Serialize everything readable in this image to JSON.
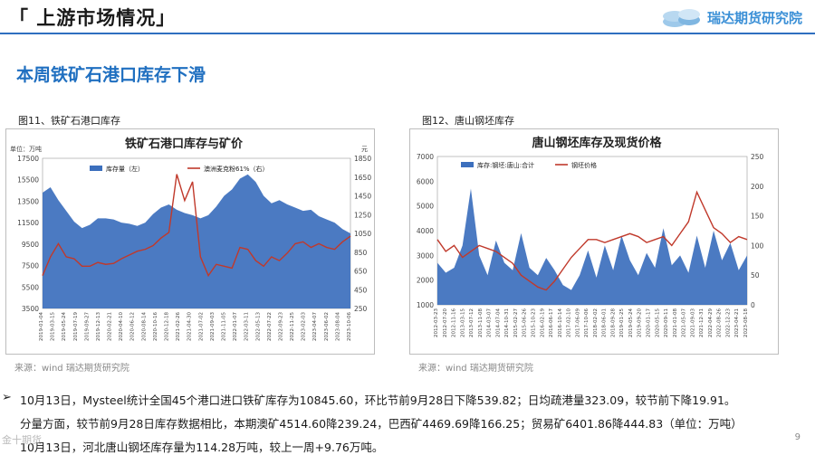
{
  "header": {
    "title": "「 上游市场情况」",
    "logo_text": "瑞达期货研究院"
  },
  "subtitle": "本周铁矿石港口库存下滑",
  "fig11": {
    "label": "图11、铁矿石港口库存",
    "source": "来源：wind    瑞达期货研究院",
    "chart_data": {
      "type": "area",
      "title": "铁矿石港口库存与矿价",
      "left_unit": "单位：万吨",
      "right_unit": "元",
      "legend": [
        "库存量（左）",
        "澳洲麦克粉61%（右）"
      ],
      "colors": {
        "area": "#3c6fbd",
        "line": "#c0392b"
      },
      "y_left_ticks": [
        "17500",
        "15500",
        "13500",
        "11500",
        "9500",
        "7500",
        "5500",
        "3500"
      ],
      "y_right_ticks": [
        "1850",
        "1650",
        "1450",
        "1250",
        "1050",
        "850",
        "650",
        "450",
        "250"
      ],
      "ylim_left": [
        3500,
        17500
      ],
      "ylim_right": [
        250,
        1850
      ],
      "x_ticks": [
        "2019-01-04",
        "2019-03-15",
        "2019-05-24",
        "2019-07-19",
        "2019-09-27",
        "2019-12-13",
        "2020-02-21",
        "2020-04-10",
        "2020-06-12",
        "2020-08-14",
        "2020-10-16",
        "2020-12-18",
        "2021-02-26",
        "2021-04-30",
        "2021-07-02",
        "2021-09-03",
        "2021-11-05",
        "2022-01-07",
        "2022-03-11",
        "2022-05-13",
        "2022-07-22",
        "2022-09-23",
        "2022-11-25",
        "2023-02-03",
        "2023-04-07",
        "2023-06-02",
        "2023-08-04",
        "2023-10-06"
      ],
      "inventory": [
        14300,
        14800,
        13600,
        12600,
        11600,
        11000,
        11300,
        11900,
        11900,
        11800,
        11500,
        11400,
        11200,
        11500,
        12300,
        12900,
        13200,
        12700,
        12400,
        12200,
        11900,
        12200,
        13000,
        14000,
        14600,
        15600,
        16000,
        15300,
        14000,
        13300,
        13600,
        13200,
        12900,
        12600,
        12700,
        12100,
        11800,
        11500,
        10900,
        10500
      ],
      "price": [
        600,
        800,
        940,
        800,
        780,
        700,
        700,
        740,
        720,
        730,
        780,
        820,
        860,
        880,
        920,
        1000,
        1060,
        1680,
        1400,
        1600,
        800,
        600,
        720,
        700,
        680,
        900,
        880,
        760,
        700,
        800,
        760,
        840,
        940,
        960,
        900,
        940,
        900,
        880,
        960,
        1020
      ]
    }
  },
  "fig12": {
    "label": "图12、唐山钢坯库存",
    "source": "来源：wind    瑞达期货研究院",
    "chart_data": {
      "type": "area",
      "title": "唐山钢坯库存及现货价格",
      "legend": [
        "库存:钢坯:唐山:合计",
        "钢坯价格"
      ],
      "colors": {
        "area": "#3c6fbd",
        "line": "#c0392b"
      },
      "y_left_ticks": [
        "7000",
        "6000",
        "5000",
        "4000",
        "3000",
        "2000",
        "1000"
      ],
      "y_right_ticks": [
        "250",
        "200",
        "150",
        "100",
        "50",
        "0"
      ],
      "ylim_left": [
        1000,
        7000
      ],
      "ylim_right": [
        0,
        250
      ],
      "x_ticks": [
        "2012-03-23",
        "2012-07-20",
        "2012-11-16",
        "2013-03-15",
        "2013-07-12",
        "2013-11-08",
        "2014-03-07",
        "2014-07-04",
        "2014-10-31",
        "2015-02-27",
        "2015-06-26",
        "2015-10-23",
        "2016-02-19",
        "2016-06-17",
        "2016-10-14",
        "2017-02-10",
        "2017-06-09",
        "2017-10-06",
        "2018-02-02",
        "2018-06-01",
        "2018-09-28",
        "2019-01-25",
        "2019-05-24",
        "2019-09-20",
        "2020-01-17",
        "2020-05-15",
        "2020-09-11",
        "2021-01-08",
        "2021-05-07",
        "2021-09-03",
        "2021-12-31",
        "2022-04-29",
        "2022-08-26",
        "2022-12-23",
        "2023-04-21",
        "2023-08-18"
      ],
      "inventory": [
        2700,
        2300,
        2500,
        3400,
        5700,
        3000,
        2200,
        3600,
        2700,
        2400,
        3900,
        2500,
        2200,
        2900,
        2400,
        1800,
        1600,
        2200,
        3200,
        2100,
        3400,
        2400,
        3800,
        2800,
        2200,
        3100,
        2500,
        4100,
        2600,
        3000,
        2300,
        3800,
        2500,
        4000,
        2800,
        3500,
        2400,
        3000
      ],
      "price": [
        110,
        90,
        100,
        80,
        90,
        100,
        95,
        90,
        80,
        70,
        50,
        40,
        30,
        25,
        40,
        60,
        80,
        95,
        110,
        110,
        105,
        110,
        115,
        120,
        115,
        105,
        110,
        115,
        100,
        120,
        140,
        190,
        160,
        130,
        120,
        105,
        115,
        110
      ]
    }
  },
  "bullets": [
    {
      "text": "10月13日，Mysteel统计全国45个港口进口铁矿库存为10845.60，环比节前9月28日下降539.82；日均疏港量323.09，较节前下降19.91。"
    },
    {
      "text": "分量方面，较节前9月28日库存数据相比，本期澳矿4514.60降239.24，巴西矿4469.69降166.25；贸易矿6401.86降444.83（单位：万吨）"
    },
    {
      "text": "10月13日，河北唐山钢坯库存量为114.28万吨，较上一周+9.76万吨。"
    }
  ],
  "bullet_mark": "➢",
  "page_number": "9",
  "watermark": "金十期货"
}
